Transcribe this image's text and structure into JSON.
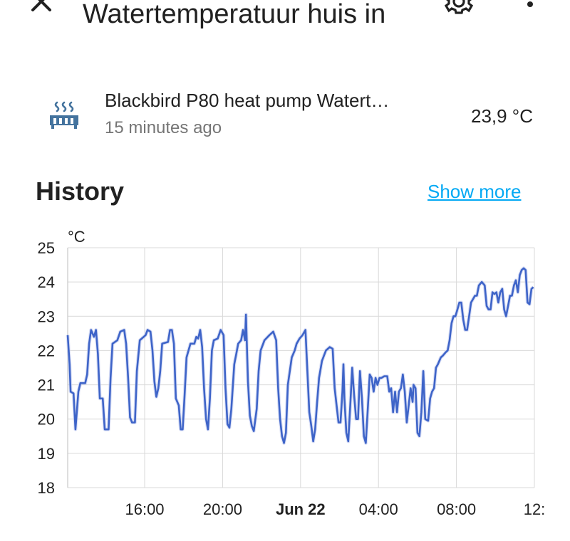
{
  "header": {
    "title": "Watertemperatuur huis in",
    "close_icon": "close-icon",
    "settings_icon": "gear-icon",
    "more_icon": "dots-vertical-icon"
  },
  "entity": {
    "icon": "radiator-icon",
    "name": "Blackbird P80 heat pump Watert…",
    "last_changed": "15 minutes ago",
    "state": "23,9 °C",
    "icon_color": "#44739e"
  },
  "history": {
    "title": "History",
    "show_more": "Show more",
    "accent_color": "#03a9f4"
  },
  "chart_data": {
    "type": "line",
    "ylabel": "°C",
    "ylim": [
      18,
      25
    ],
    "yticks": [
      "18",
      "19",
      "20",
      "21",
      "22",
      "23",
      "24",
      "25"
    ],
    "xticks": [
      "16:00",
      "20:00",
      "Jun 22",
      "04:00",
      "08:00",
      "12:"
    ],
    "xtick_hours": [
      16,
      20,
      24,
      28,
      32,
      36
    ],
    "xlim_hours": [
      12.05,
      36.0
    ],
    "grid": true,
    "line_color": "#3e64c8",
    "series": [
      {
        "points": [
          [
            12.05,
            22.45
          ],
          [
            12.15,
            21.6
          ],
          [
            12.2,
            20.8
          ],
          [
            12.35,
            20.75
          ],
          [
            12.45,
            19.7
          ],
          [
            12.6,
            20.8
          ],
          [
            12.7,
            21.05
          ],
          [
            12.95,
            21.05
          ],
          [
            13.05,
            21.3
          ],
          [
            13.15,
            22.2
          ],
          [
            13.25,
            22.6
          ],
          [
            13.4,
            22.4
          ],
          [
            13.5,
            22.6
          ],
          [
            13.6,
            21.9
          ],
          [
            13.7,
            20.6
          ],
          [
            13.85,
            20.6
          ],
          [
            13.95,
            19.7
          ],
          [
            14.15,
            19.7
          ],
          [
            14.25,
            21.2
          ],
          [
            14.35,
            22.2
          ],
          [
            14.6,
            22.3
          ],
          [
            14.75,
            22.55
          ],
          [
            14.95,
            22.6
          ],
          [
            15.05,
            22.2
          ],
          [
            15.15,
            21.2
          ],
          [
            15.25,
            20.05
          ],
          [
            15.35,
            19.9
          ],
          [
            15.5,
            19.9
          ],
          [
            15.6,
            21.4
          ],
          [
            15.75,
            22.3
          ],
          [
            16.05,
            22.45
          ],
          [
            16.15,
            22.6
          ],
          [
            16.3,
            22.55
          ],
          [
            16.4,
            22.0
          ],
          [
            16.5,
            21.1
          ],
          [
            16.6,
            20.65
          ],
          [
            16.7,
            20.9
          ],
          [
            16.8,
            21.4
          ],
          [
            16.9,
            22.2
          ],
          [
            17.2,
            22.25
          ],
          [
            17.3,
            22.6
          ],
          [
            17.4,
            22.6
          ],
          [
            17.5,
            22.2
          ],
          [
            17.6,
            20.6
          ],
          [
            17.75,
            20.4
          ],
          [
            17.85,
            19.7
          ],
          [
            17.95,
            19.7
          ],
          [
            18.05,
            20.7
          ],
          [
            18.15,
            21.8
          ],
          [
            18.35,
            22.2
          ],
          [
            18.55,
            22.2
          ],
          [
            18.65,
            22.4
          ],
          [
            18.75,
            22.35
          ],
          [
            18.85,
            22.6
          ],
          [
            18.95,
            22.1
          ],
          [
            19.05,
            20.9
          ],
          [
            19.15,
            20.0
          ],
          [
            19.25,
            19.7
          ],
          [
            19.35,
            20.6
          ],
          [
            19.45,
            22.0
          ],
          [
            19.55,
            22.3
          ],
          [
            19.75,
            22.35
          ],
          [
            19.9,
            22.6
          ],
          [
            20.05,
            22.45
          ],
          [
            20.15,
            20.9
          ],
          [
            20.25,
            19.85
          ],
          [
            20.35,
            19.75
          ],
          [
            20.45,
            20.3
          ],
          [
            20.6,
            21.6
          ],
          [
            20.7,
            21.9
          ],
          [
            20.8,
            22.2
          ],
          [
            20.95,
            22.3
          ],
          [
            21.05,
            22.6
          ],
          [
            21.15,
            22.3
          ],
          [
            21.2,
            23.05
          ],
          [
            21.3,
            21.1
          ],
          [
            21.4,
            20.1
          ],
          [
            21.5,
            19.8
          ],
          [
            21.6,
            19.65
          ],
          [
            21.75,
            20.3
          ],
          [
            21.85,
            21.4
          ],
          [
            21.95,
            22.0
          ],
          [
            22.15,
            22.3
          ],
          [
            22.4,
            22.45
          ],
          [
            22.6,
            22.55
          ],
          [
            22.75,
            22.3
          ],
          [
            22.85,
            20.9
          ],
          [
            22.95,
            20.0
          ],
          [
            23.05,
            19.5
          ],
          [
            23.15,
            19.3
          ],
          [
            23.25,
            19.6
          ],
          [
            23.35,
            21.0
          ],
          [
            23.55,
            21.8
          ],
          [
            23.7,
            22.0
          ],
          [
            23.8,
            22.2
          ],
          [
            23.95,
            22.35
          ],
          [
            24.1,
            22.45
          ],
          [
            24.25,
            22.6
          ],
          [
            24.35,
            21.4
          ],
          [
            24.45,
            20.2
          ],
          [
            24.55,
            19.8
          ],
          [
            24.65,
            19.35
          ],
          [
            24.75,
            19.7
          ],
          [
            24.85,
            20.5
          ],
          [
            24.95,
            21.2
          ],
          [
            25.1,
            21.7
          ],
          [
            25.3,
            22.0
          ],
          [
            25.5,
            22.1
          ],
          [
            25.65,
            22.05
          ],
          [
            25.75,
            20.9
          ],
          [
            25.85,
            20.4
          ],
          [
            25.95,
            19.9
          ],
          [
            26.05,
            19.9
          ],
          [
            26.15,
            20.8
          ],
          [
            26.2,
            21.6
          ],
          [
            26.25,
            20.6
          ],
          [
            26.35,
            19.6
          ],
          [
            26.45,
            19.35
          ],
          [
            26.55,
            20.4
          ],
          [
            26.65,
            21.5
          ],
          [
            26.75,
            20.7
          ],
          [
            26.85,
            20.0
          ],
          [
            26.95,
            20.0
          ],
          [
            27.05,
            21.4
          ],
          [
            27.15,
            20.6
          ],
          [
            27.25,
            19.5
          ],
          [
            27.35,
            19.3
          ],
          [
            27.45,
            20.3
          ],
          [
            27.55,
            21.3
          ],
          [
            27.65,
            21.2
          ],
          [
            27.75,
            20.8
          ],
          [
            27.85,
            21.2
          ],
          [
            27.95,
            21.0
          ],
          [
            28.05,
            21.2
          ],
          [
            28.15,
            21.2
          ],
          [
            28.3,
            21.25
          ],
          [
            28.45,
            21.25
          ],
          [
            28.55,
            20.8
          ],
          [
            28.65,
            20.9
          ],
          [
            28.75,
            20.2
          ],
          [
            28.85,
            20.8
          ],
          [
            28.95,
            20.2
          ],
          [
            29.05,
            20.8
          ],
          [
            29.15,
            20.9
          ],
          [
            29.25,
            21.3
          ],
          [
            29.35,
            20.8
          ],
          [
            29.45,
            19.9
          ],
          [
            29.55,
            20.4
          ],
          [
            29.65,
            20.9
          ],
          [
            29.75,
            20.5
          ],
          [
            29.8,
            21.0
          ],
          [
            29.9,
            20.9
          ],
          [
            30.0,
            19.6
          ],
          [
            30.1,
            19.5
          ],
          [
            30.2,
            20.2
          ],
          [
            30.3,
            21.4
          ],
          [
            30.4,
            20.0
          ],
          [
            30.55,
            19.95
          ],
          [
            30.65,
            20.6
          ],
          [
            30.75,
            20.8
          ],
          [
            30.85,
            20.9
          ],
          [
            30.95,
            21.5
          ],
          [
            31.05,
            21.6
          ],
          [
            31.2,
            21.8
          ],
          [
            31.3,
            21.85
          ],
          [
            31.45,
            21.95
          ],
          [
            31.55,
            22.0
          ],
          [
            31.65,
            22.3
          ],
          [
            31.75,
            22.8
          ],
          [
            31.85,
            23.0
          ],
          [
            31.95,
            23.0
          ],
          [
            32.05,
            23.2
          ],
          [
            32.15,
            23.4
          ],
          [
            32.25,
            23.4
          ],
          [
            32.35,
            22.9
          ],
          [
            32.45,
            22.6
          ],
          [
            32.55,
            22.6
          ],
          [
            32.65,
            23.0
          ],
          [
            32.75,
            23.4
          ],
          [
            32.85,
            23.5
          ],
          [
            32.95,
            23.6
          ],
          [
            33.05,
            23.6
          ],
          [
            33.15,
            23.9
          ],
          [
            33.3,
            24.0
          ],
          [
            33.45,
            23.9
          ],
          [
            33.55,
            23.3
          ],
          [
            33.65,
            23.2
          ],
          [
            33.75,
            23.2
          ],
          [
            33.85,
            23.7
          ],
          [
            33.95,
            23.65
          ],
          [
            34.05,
            23.7
          ],
          [
            34.15,
            23.4
          ],
          [
            34.25,
            23.7
          ],
          [
            34.35,
            23.8
          ],
          [
            34.45,
            23.2
          ],
          [
            34.55,
            23.0
          ],
          [
            34.65,
            23.3
          ],
          [
            34.75,
            23.6
          ],
          [
            34.85,
            23.6
          ],
          [
            34.95,
            23.9
          ],
          [
            35.05,
            24.05
          ],
          [
            35.15,
            23.7
          ],
          [
            35.25,
            24.2
          ],
          [
            35.35,
            24.35
          ],
          [
            35.45,
            24.4
          ],
          [
            35.55,
            24.35
          ],
          [
            35.65,
            23.4
          ],
          [
            35.75,
            23.35
          ],
          [
            35.85,
            23.8
          ],
          [
            35.95,
            23.85
          ]
        ]
      }
    ]
  }
}
